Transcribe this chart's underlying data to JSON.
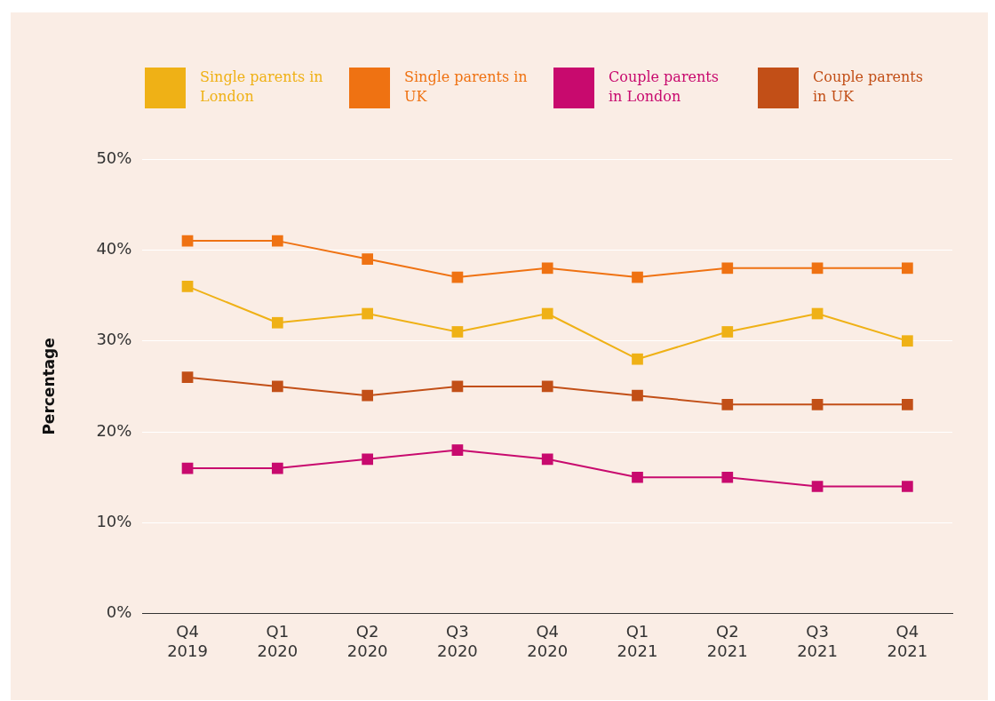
{
  "chart_data": {
    "type": "line",
    "ylabel": "Percentage",
    "categories": [
      "Q4 2019",
      "Q1 2020",
      "Q2 2020",
      "Q3 2020",
      "Q4 2020",
      "Q1 2021",
      "Q2 2021",
      "Q3 2021",
      "Q4 2021"
    ],
    "series": [
      {
        "name": "Single parents in London",
        "color": "#efb116",
        "values": [
          36,
          32,
          33,
          31,
          33,
          28,
          31,
          33,
          30
        ]
      },
      {
        "name": "Single parents in UK",
        "color": "#ef7212",
        "values": [
          41,
          41,
          39,
          37,
          38,
          37,
          38,
          38,
          38
        ]
      },
      {
        "name": "Couple parents in London",
        "color": "#c80a6e",
        "values": [
          16,
          16,
          17,
          18,
          17,
          15,
          15,
          14,
          14
        ]
      },
      {
        "name": "Couple parents in UK",
        "color": "#c24f17",
        "values": [
          26,
          25,
          24,
          25,
          25,
          24,
          23,
          23,
          23
        ]
      }
    ],
    "ylim": [
      0,
      50
    ],
    "yticks": [
      {
        "value": 0,
        "label": "0%"
      },
      {
        "value": 10,
        "label": "10%"
      },
      {
        "value": 20,
        "label": "20%"
      },
      {
        "value": 30,
        "label": "30%"
      },
      {
        "value": 40,
        "label": "40%"
      },
      {
        "value": 50,
        "label": "50%"
      }
    ],
    "grid": "y",
    "legend": "top left",
    "marker": "square",
    "line_style": "solid"
  }
}
